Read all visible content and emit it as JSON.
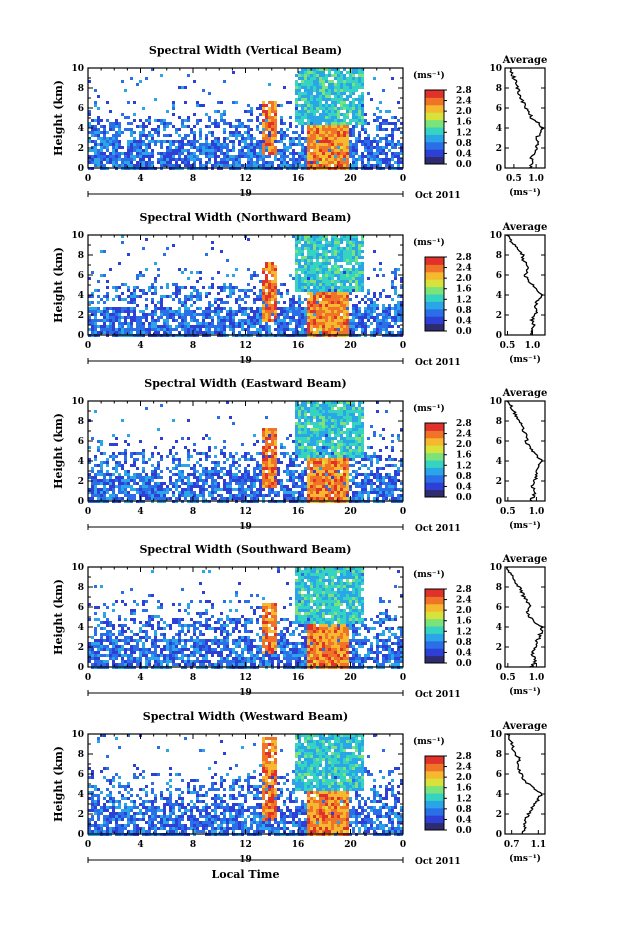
{
  "figure": {
    "xlabel": "Local Time",
    "colorbar_unit": "(ms⁻¹)",
    "colorbar_ticks": [
      "0.0",
      "0.4",
      "0.8",
      "1.2",
      "1.6",
      "2.0",
      "2.4",
      "2.8"
    ],
    "colorbar_colors": [
      "#2e2b6e",
      "#2d3fd4",
      "#2a6fe8",
      "#2aa5e8",
      "#36d4c0",
      "#7be37a",
      "#d7e33a",
      "#f5b82e",
      "#f07428",
      "#e0322a"
    ],
    "date_day": "19",
    "date_month_year": "Oct 2011",
    "average_title": "Average",
    "average_unit": "(ms⁻¹)"
  },
  "chart_data": [
    {
      "type": "heatmap",
      "title": "Spectral Width (Vertical Beam)",
      "ylabel": "Height (km)",
      "xlim": [
        0,
        24
      ],
      "ylim": [
        0,
        10
      ],
      "xticks": [
        "0",
        "4",
        "8",
        "12",
        "16",
        "20",
        "0"
      ],
      "yticks": [
        "0",
        "2",
        "4",
        "6",
        "8",
        "10"
      ],
      "colorbar_range": [
        0.0,
        2.8
      ],
      "features": [
        {
          "region": "low clutter",
          "x_range": [
            0,
            24
          ],
          "height_range": [
            0,
            6
          ],
          "value": 0.6
        },
        {
          "region": "narrow red plume",
          "x_range": [
            13.1,
            14.2
          ],
          "height_range": [
            1.5,
            6.8
          ],
          "value": 2.6
        },
        {
          "region": "upper echo",
          "x_range": [
            15.6,
            21
          ],
          "height_range": [
            4.5,
            10
          ],
          "value": 1.1
        },
        {
          "region": "red block",
          "x_range": [
            16.6,
            19.8
          ],
          "height_range": [
            0,
            4.5
          ],
          "value": 2.5
        }
      ],
      "average_profile": {
        "xticks": [
          "0.5",
          "1.0"
        ],
        "xlim": [
          0.3,
          1.2
        ],
        "ylim": [
          0,
          10
        ],
        "height": [
          0,
          0.5,
          1,
          1.5,
          2,
          2.5,
          3,
          3.5,
          4,
          4.5,
          5,
          5.5,
          6,
          6.5,
          7,
          7.5,
          8,
          8.5,
          9,
          9.5,
          10
        ],
        "width": [
          0.85,
          0.92,
          0.88,
          0.95,
          1.0,
          1.05,
          1.0,
          1.1,
          1.15,
          1.05,
          0.9,
          0.85,
          0.78,
          0.72,
          0.65,
          0.62,
          0.58,
          0.55,
          0.5,
          0.45,
          0.42
        ]
      }
    },
    {
      "type": "heatmap",
      "title": "Spectral Width (Northward Beam)",
      "ylabel": "Height (km)",
      "xlim": [
        0,
        24
      ],
      "ylim": [
        0,
        10
      ],
      "xticks": [
        "0",
        "4",
        "8",
        "12",
        "16",
        "20",
        "0"
      ],
      "yticks": [
        "0",
        "2",
        "4",
        "6",
        "8",
        "10"
      ],
      "colorbar_range": [
        0.0,
        2.8
      ],
      "features": [
        {
          "region": "low clutter",
          "x_range": [
            0,
            24
          ],
          "height_range": [
            0,
            6
          ],
          "value": 0.6
        },
        {
          "region": "narrow red plume",
          "x_range": [
            13.1,
            14.2
          ],
          "height_range": [
            1.5,
            7.5
          ],
          "value": 2.6
        },
        {
          "region": "upper echo",
          "x_range": [
            15.6,
            21
          ],
          "height_range": [
            4.5,
            10
          ],
          "value": 1.1
        },
        {
          "region": "red block",
          "x_range": [
            16.6,
            19.8
          ],
          "height_range": [
            0,
            4.5
          ],
          "value": 2.5
        }
      ],
      "average_profile": {
        "xticks": [
          "0.5",
          "1.0"
        ],
        "xlim": [
          0.45,
          1.25
        ],
        "ylim": [
          0,
          10
        ],
        "height": [
          0,
          0.5,
          1,
          1.5,
          2,
          2.5,
          3,
          3.5,
          4,
          4.5,
          5,
          5.5,
          6,
          6.5,
          7,
          7.5,
          8,
          8.5,
          9,
          9.5,
          10
        ],
        "width": [
          0.95,
          1.0,
          1.02,
          0.98,
          1.05,
          1.1,
          1.05,
          1.12,
          1.18,
          1.1,
          1.0,
          0.92,
          0.85,
          0.9,
          0.88,
          0.82,
          0.8,
          0.72,
          0.65,
          0.55,
          0.48
        ]
      }
    },
    {
      "type": "heatmap",
      "title": "Spectral Width (Eastward Beam)",
      "ylabel": "Height (km)",
      "xlim": [
        0,
        24
      ],
      "ylim": [
        0,
        10
      ],
      "xticks": [
        "0",
        "4",
        "8",
        "12",
        "16",
        "20",
        "0"
      ],
      "yticks": [
        "0",
        "2",
        "4",
        "6",
        "8",
        "10"
      ],
      "colorbar_range": [
        0.0,
        2.8
      ],
      "features": [
        {
          "region": "low clutter",
          "x_range": [
            0,
            24
          ],
          "height_range": [
            0,
            6
          ],
          "value": 0.6
        },
        {
          "region": "narrow red plume",
          "x_range": [
            13.1,
            14.2
          ],
          "height_range": [
            1.5,
            7.5
          ],
          "value": 2.6
        },
        {
          "region": "upper echo",
          "x_range": [
            15.6,
            21
          ],
          "height_range": [
            4.5,
            10
          ],
          "value": 1.1
        },
        {
          "region": "red block",
          "x_range": [
            16.6,
            19.8
          ],
          "height_range": [
            0,
            4.5
          ],
          "value": 2.5
        }
      ],
      "average_profile": {
        "xticks": [
          "0.5",
          "1.0"
        ],
        "xlim": [
          0.45,
          1.15
        ],
        "ylim": [
          0,
          10
        ],
        "height": [
          0,
          0.5,
          1,
          1.5,
          2,
          2.5,
          3,
          3.5,
          4,
          4.5,
          5,
          5.5,
          6,
          6.5,
          7,
          7.5,
          8,
          8.5,
          9,
          9.5,
          10
        ],
        "width": [
          0.9,
          0.95,
          0.98,
          0.92,
          0.96,
          1.0,
          1.02,
          1.05,
          1.1,
          1.0,
          0.92,
          0.86,
          0.82,
          0.85,
          0.78,
          0.74,
          0.7,
          0.65,
          0.6,
          0.55,
          0.5
        ]
      }
    },
    {
      "type": "heatmap",
      "title": "Spectral Width (Southward Beam)",
      "ylabel": "Height (km)",
      "xlim": [
        0,
        24
      ],
      "ylim": [
        0,
        10
      ],
      "xticks": [
        "0",
        "4",
        "8",
        "12",
        "16",
        "20",
        "0"
      ],
      "yticks": [
        "0",
        "2",
        "4",
        "6",
        "8",
        "10"
      ],
      "colorbar_range": [
        0.0,
        2.8
      ],
      "features": [
        {
          "region": "low clutter",
          "x_range": [
            0,
            24
          ],
          "height_range": [
            0,
            6
          ],
          "value": 0.6
        },
        {
          "region": "narrow red plume",
          "x_range": [
            13.1,
            14.2
          ],
          "height_range": [
            1.5,
            6.5
          ],
          "value": 2.6
        },
        {
          "region": "upper echo",
          "x_range": [
            15.6,
            21
          ],
          "height_range": [
            4.5,
            10
          ],
          "value": 1.1
        },
        {
          "region": "red block",
          "x_range": [
            16.6,
            19.8
          ],
          "height_range": [
            0,
            4.5
          ],
          "value": 2.5
        }
      ],
      "average_profile": {
        "xticks": [
          "0.5",
          "1.0"
        ],
        "xlim": [
          0.45,
          1.15
        ],
        "ylim": [
          0,
          10
        ],
        "height": [
          0,
          0.5,
          1,
          1.5,
          2,
          2.5,
          3,
          3.5,
          4,
          4.5,
          5,
          5.5,
          6,
          6.5,
          7,
          7.5,
          8,
          8.5,
          9,
          9.5,
          10
        ],
        "width": [
          0.9,
          0.98,
          0.95,
          0.92,
          0.98,
          1.0,
          1.05,
          1.08,
          1.1,
          0.98,
          0.88,
          0.82,
          0.9,
          0.85,
          0.78,
          0.75,
          0.7,
          0.62,
          0.58,
          0.52,
          0.48
        ]
      }
    },
    {
      "type": "heatmap",
      "title": "Spectral Width (Westward Beam)",
      "ylabel": "Height (km)",
      "xlim": [
        0,
        24
      ],
      "ylim": [
        0,
        10
      ],
      "xticks": [
        "0",
        "4",
        "8",
        "12",
        "16",
        "20",
        "0"
      ],
      "yticks": [
        "0",
        "2",
        "4",
        "6",
        "8",
        "10"
      ],
      "colorbar_range": [
        0.0,
        2.8
      ],
      "features": [
        {
          "region": "low clutter",
          "x_range": [
            0,
            24
          ],
          "height_range": [
            0,
            6
          ],
          "value": 0.6
        },
        {
          "region": "narrow red plume",
          "x_range": [
            13.1,
            14.2
          ],
          "height_range": [
            1.5,
            9.8
          ],
          "value": 2.6
        },
        {
          "region": "upper echo",
          "x_range": [
            15.6,
            21
          ],
          "height_range": [
            4.5,
            10
          ],
          "value": 1.1
        },
        {
          "region": "red block",
          "x_range": [
            16.6,
            19.8
          ],
          "height_range": [
            0,
            4.5
          ],
          "value": 2.5
        }
      ],
      "average_profile": {
        "xticks": [
          "0.7",
          "1.1"
        ],
        "xlim": [
          0.6,
          1.2
        ],
        "ylim": [
          0,
          10
        ],
        "height": [
          0,
          0.5,
          1,
          1.5,
          2,
          2.5,
          3,
          3.5,
          4,
          4.5,
          5,
          5.5,
          6,
          6.5,
          7,
          7.5,
          8,
          8.5,
          9,
          9.5,
          10
        ],
        "width": [
          0.85,
          0.9,
          0.88,
          0.92,
          0.95,
          1.0,
          1.05,
          1.1,
          1.15,
          1.05,
          0.95,
          0.88,
          0.85,
          0.8,
          0.78,
          0.82,
          0.75,
          0.72,
          0.7,
          0.68,
          0.65
        ]
      }
    }
  ]
}
